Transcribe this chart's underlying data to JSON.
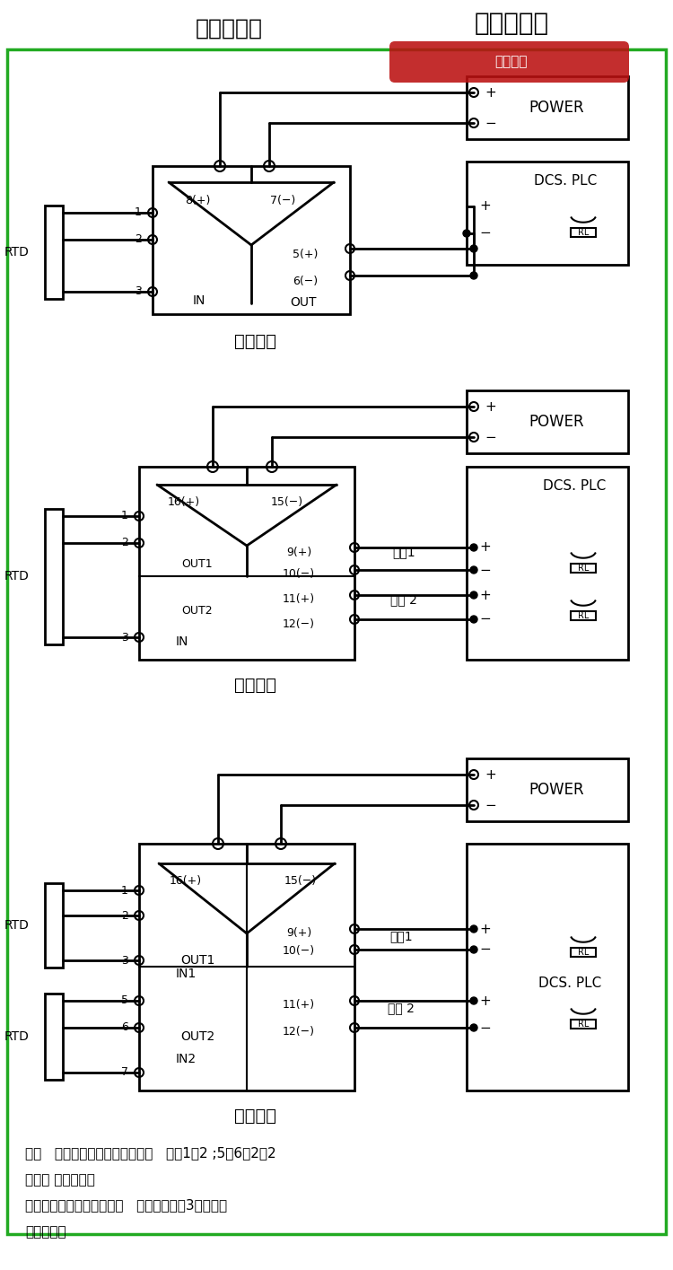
{
  "title": "产品接线图",
  "watermark_store": "亦淳旗舰店",
  "watermark_sub": "盗图必究",
  "bg_color": "#ffffff",
  "border_color": "#22aa22",
  "diagram1_label": "一进一出",
  "diagram2_label": "一进二出",
  "diagram3_label": "二进二出",
  "note_line1": "注：   二线制热电阻信号输入时，   端子1、2 ;5、6（2进2",
  "note_line2": "出时） 必须短接。",
  "note_line3": "三线制热电阻信号输入时，   要尽可能保证3根导线电",
  "note_line4": "阻值相等。"
}
